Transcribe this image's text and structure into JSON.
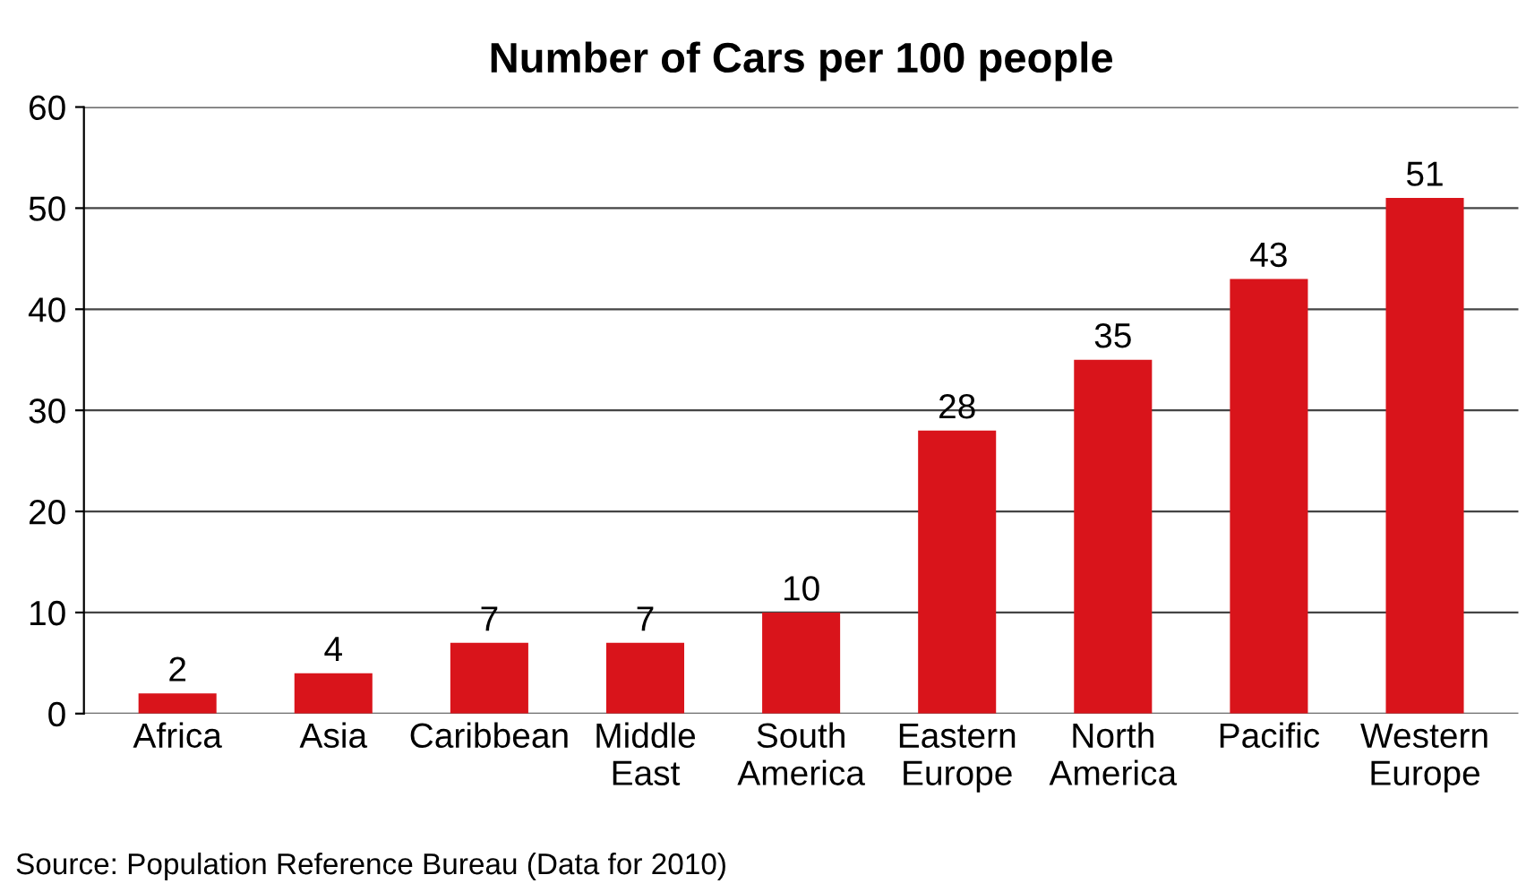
{
  "chart_data": {
    "type": "bar",
    "title": "Number of Cars per 100 people",
    "categories": [
      "Africa",
      "Asia",
      "Caribbean",
      "Middle\nEast",
      "South\nAmerica",
      "Eastern\nEurope",
      "North\nAmerica",
      "Pacific",
      "Western\nEurope"
    ],
    "values": [
      2,
      4,
      7,
      7,
      10,
      28,
      35,
      43,
      51
    ],
    "color": "#d9141b",
    "data_labels": true,
    "ylim": [
      0,
      60
    ],
    "yticks": [
      0,
      10,
      20,
      30,
      40,
      50,
      60
    ],
    "grid": "y",
    "annotations": [
      "Source: Population Reference Bureau (Data for 2010)"
    ]
  }
}
